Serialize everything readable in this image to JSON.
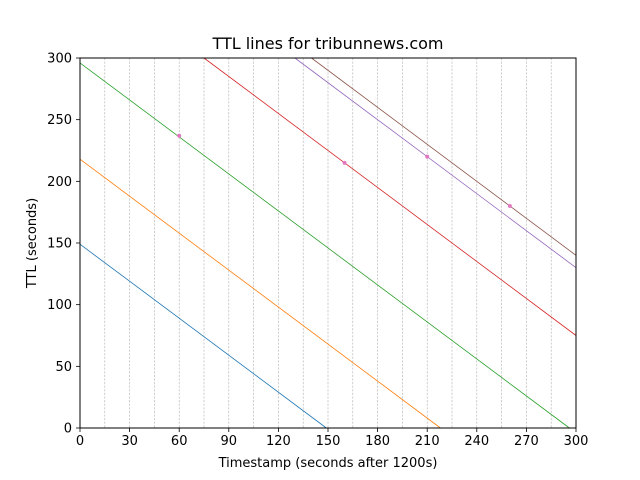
{
  "chart_data": {
    "type": "line",
    "title": "TTL lines for tribunnews.com",
    "xlabel": "Timestamp (seconds after 1200s)",
    "ylabel": "TTL (seconds)",
    "xlim": [
      0,
      300
    ],
    "ylim": [
      0,
      300
    ],
    "xticks": [
      0,
      30,
      60,
      90,
      120,
      150,
      180,
      210,
      240,
      270,
      300
    ],
    "yticks": [
      0,
      50,
      100,
      150,
      200,
      250,
      300
    ],
    "x_minor_gridlines": [
      15,
      30,
      45,
      60,
      75,
      90,
      105,
      120,
      135,
      150,
      165,
      180,
      195,
      210,
      225,
      240,
      255,
      270,
      285
    ],
    "grid": "vertical dashed gridlines",
    "legend": "none",
    "series": [
      {
        "color": "#1f77b4",
        "points": [
          [
            0,
            149
          ],
          [
            149,
            0
          ]
        ]
      },
      {
        "color": "#ff7f0e",
        "points": [
          [
            0,
            218
          ],
          [
            218,
            0
          ]
        ]
      },
      {
        "color": "#2ca02c",
        "points": [
          [
            0,
            296
          ],
          [
            296,
            0
          ]
        ]
      },
      {
        "color": "#d62728",
        "points": [
          [
            75,
            300
          ],
          [
            300,
            75
          ]
        ]
      },
      {
        "color": "#9467bd",
        "points": [
          [
            130,
            300
          ],
          [
            300,
            130
          ]
        ]
      },
      {
        "color": "#8c564b",
        "points": [
          [
            140,
            300
          ],
          [
            300,
            140
          ]
        ]
      }
    ],
    "markers": {
      "color": "#e377c2",
      "points": [
        [
          60,
          237
        ],
        [
          160,
          215
        ],
        [
          210,
          220
        ],
        [
          260,
          180
        ]
      ]
    }
  }
}
